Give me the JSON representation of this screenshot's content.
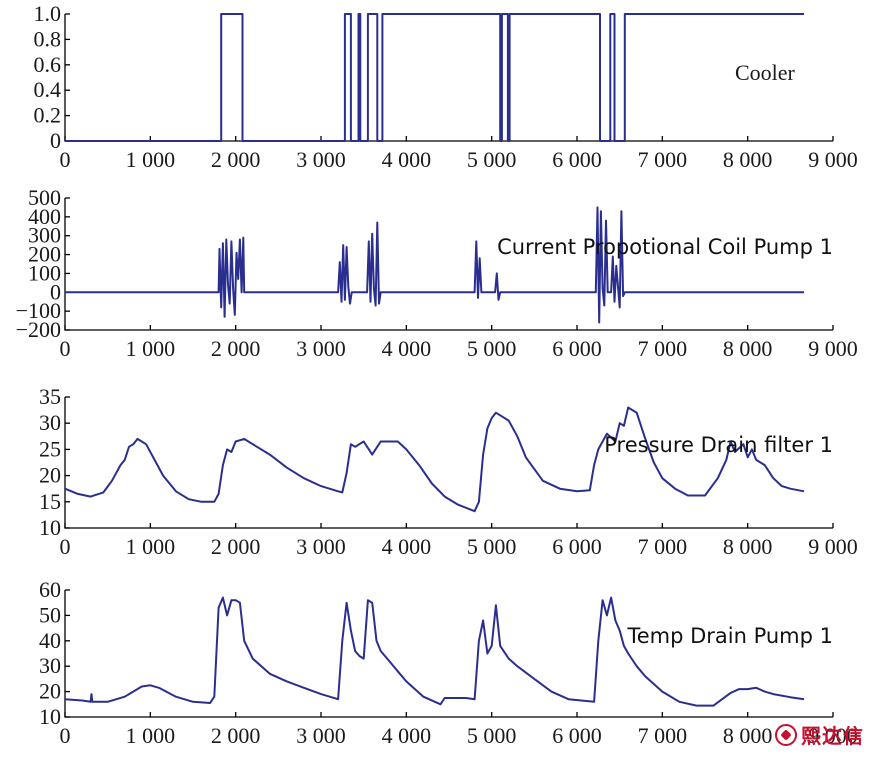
{
  "colors": {
    "line": "#2a2f8f",
    "axis": "#000000",
    "watermark": "#c8102e"
  },
  "watermark": {
    "icon": "seal-logo-icon",
    "text": "熙达信"
  },
  "chart_data": [
    {
      "type": "line",
      "title": "Cooler",
      "xlim": [
        0,
        9000
      ],
      "ylim": [
        0,
        1.0
      ],
      "x_ticks": [
        0,
        1000,
        2000,
        3000,
        4000,
        5000,
        6000,
        7000,
        8000,
        9000
      ],
      "x_tick_labels": [
        "0",
        "1 000",
        "2 000",
        "3 000",
        "4 000",
        "5 000",
        "6 000",
        "7 000",
        "8 000",
        "9 000"
      ],
      "y_ticks": [
        0,
        0.2,
        0.4,
        0.6,
        0.8,
        1.0
      ],
      "y_tick_labels": [
        "0",
        "0.2",
        "0.4",
        "0.6",
        "0.8",
        "1.0"
      ],
      "series": [
        {
          "x": [
            0,
            1830,
            1830,
            2080,
            2080,
            3280,
            3280,
            3350,
            3350,
            3440,
            3440,
            3460,
            3460,
            3550,
            3550,
            3660,
            3660,
            3720,
            3720,
            5100,
            5100,
            5120,
            5120,
            5190,
            5190,
            5210,
            5210,
            6270,
            6270,
            6390,
            6390,
            6440,
            6440,
            6560,
            6560,
            8660
          ],
          "y": [
            0,
            0,
            1,
            1,
            0,
            0,
            1,
            1,
            0,
            0,
            1,
            1,
            0,
            0,
            1,
            1,
            0,
            0,
            1,
            1,
            0,
            0,
            1,
            1,
            0,
            0,
            1,
            1,
            0,
            0,
            1,
            1,
            0,
            0,
            1,
            1
          ]
        }
      ]
    },
    {
      "type": "line",
      "title": "Current Propotional Coil Pump 1",
      "xlim": [
        0,
        9000
      ],
      "ylim": [
        -200,
        500
      ],
      "x_ticks": [
        0,
        1000,
        2000,
        3000,
        4000,
        5000,
        6000,
        7000,
        8000,
        9000
      ],
      "x_tick_labels": [
        "0",
        "1 000",
        "2 000",
        "3 000",
        "4 000",
        "5 000",
        "6 000",
        "7 000",
        "8 000",
        "9 000"
      ],
      "y_ticks": [
        -200,
        -100,
        0,
        100,
        200,
        300,
        400,
        500
      ],
      "y_tick_labels": [
        "−200",
        "−100",
        "0",
        "100",
        "200",
        "300",
        "400",
        "500"
      ],
      "series": [
        {
          "x": [
            0,
            1800,
            1810,
            1830,
            1850,
            1870,
            1890,
            1910,
            1930,
            1950,
            1970,
            1990,
            2010,
            2030,
            2050,
            2070,
            2090,
            2100,
            3200,
            3220,
            3240,
            3260,
            3280,
            3300,
            3320,
            3340,
            3360,
            3540,
            3560,
            3580,
            3600,
            3620,
            3640,
            3660,
            3680,
            3700,
            4800,
            4820,
            4840,
            4860,
            4880,
            5040,
            5060,
            5080,
            5100,
            6220,
            6240,
            6260,
            6280,
            6300,
            6320,
            6340,
            6360,
            6380,
            6400,
            6420,
            6440,
            6460,
            6480,
            6500,
            6520,
            6540,
            6560,
            8660
          ],
          "y": [
            0,
            0,
            230,
            -80,
            260,
            -130,
            280,
            40,
            -60,
            270,
            20,
            -120,
            210,
            70,
            280,
            0,
            290,
            0,
            0,
            160,
            -50,
            250,
            -40,
            240,
            30,
            -60,
            0,
            0,
            270,
            -50,
            310,
            20,
            -70,
            370,
            -60,
            0,
            0,
            270,
            -30,
            180,
            0,
            0,
            100,
            -40,
            0,
            0,
            450,
            -160,
            430,
            20,
            -70,
            380,
            0,
            0,
            0,
            190,
            -50,
            140,
            30,
            -80,
            430,
            -20,
            0,
            0
          ]
        }
      ]
    },
    {
      "type": "line",
      "title": "Pressure Drain filter 1",
      "xlim": [
        0,
        9000
      ],
      "ylim": [
        10,
        35
      ],
      "x_ticks": [
        0,
        1000,
        2000,
        3000,
        4000,
        5000,
        6000,
        7000,
        8000,
        9000
      ],
      "x_tick_labels": [
        "0",
        "1 000",
        "2 000",
        "3 000",
        "4 000",
        "5 000",
        "6 000",
        "7 000",
        "8 000",
        "9 000"
      ],
      "y_ticks": [
        10,
        15,
        20,
        25,
        30,
        35
      ],
      "y_tick_labels": [
        "10",
        "15",
        "20",
        "25",
        "30",
        "35"
      ],
      "series": [
        {
          "x": [
            0,
            150,
            300,
            450,
            550,
            650,
            700,
            750,
            800,
            850,
            950,
            1050,
            1150,
            1300,
            1450,
            1600,
            1750,
            1800,
            1850,
            1900,
            1950,
            2000,
            2100,
            2200,
            2400,
            2600,
            2800,
            3000,
            3200,
            3250,
            3300,
            3350,
            3400,
            3500,
            3600,
            3700,
            3800,
            3900,
            4000,
            4150,
            4300,
            4450,
            4600,
            4800,
            4850,
            4900,
            4950,
            5000,
            5050,
            5100,
            5200,
            5300,
            5400,
            5600,
            5800,
            6000,
            6150,
            6200,
            6250,
            6350,
            6450,
            6500,
            6550,
            6600,
            6700,
            6800,
            6900,
            7000,
            7150,
            7300,
            7500,
            7650,
            7750,
            7800,
            7850,
            7950,
            8000,
            8050,
            8100,
            8200,
            8300,
            8400,
            8500,
            8660
          ],
          "y": [
            17.5,
            16.5,
            16,
            16.8,
            19,
            22,
            23,
            25.5,
            26,
            27,
            26,
            23,
            20,
            17,
            15.5,
            15,
            15,
            16.5,
            22,
            25,
            24.5,
            26.5,
            27,
            26,
            24,
            21.5,
            19.5,
            18,
            17,
            16.8,
            20.5,
            26,
            25.5,
            26.5,
            24,
            26.5,
            26.5,
            26.5,
            25,
            22,
            18.5,
            16,
            14.5,
            13.2,
            15,
            24,
            29,
            31,
            32,
            31.5,
            30.5,
            27.5,
            23.5,
            19,
            17.5,
            17,
            17.2,
            22,
            25,
            28,
            26.5,
            30,
            29.5,
            33,
            32,
            27,
            22.5,
            19.5,
            17.5,
            16.2,
            16.2,
            19.5,
            23,
            26.5,
            24.5,
            26,
            23.5,
            25,
            23,
            22,
            19.5,
            18,
            17.5,
            17
          ]
        }
      ]
    },
    {
      "type": "line",
      "title": "Temp Drain Pump 1",
      "xlim": [
        0,
        9000
      ],
      "ylim": [
        10,
        60
      ],
      "x_ticks": [
        0,
        1000,
        2000,
        3000,
        4000,
        5000,
        6000,
        7000,
        8000,
        9000
      ],
      "x_tick_labels": [
        "0",
        "1 000",
        "2 000",
        "3 000",
        "4 000",
        "5 000",
        "6 000",
        "7 000",
        "8 000",
        "9 000"
      ],
      "y_ticks": [
        10,
        20,
        30,
        40,
        50,
        60
      ],
      "y_tick_labels": [
        "10",
        "20",
        "30",
        "40",
        "50",
        "60"
      ],
      "series": [
        {
          "x": [
            0,
            200,
            300,
            310,
            320,
            500,
            700,
            900,
            1000,
            1100,
            1300,
            1500,
            1700,
            1750,
            1800,
            1850,
            1900,
            1950,
            2000,
            2050,
            2100,
            2200,
            2400,
            2600,
            2800,
            3000,
            3200,
            3250,
            3300,
            3350,
            3400,
            3450,
            3500,
            3550,
            3600,
            3650,
            3700,
            3800,
            3900,
            4000,
            4200,
            4400,
            4450,
            4600,
            4700,
            4800,
            4850,
            4900,
            4950,
            5000,
            5050,
            5100,
            5200,
            5300,
            5500,
            5700,
            5900,
            6200,
            6250,
            6300,
            6350,
            6400,
            6450,
            6500,
            6550,
            6600,
            6700,
            6800,
            7000,
            7200,
            7400,
            7600,
            7700,
            7800,
            7900,
            8000,
            8100,
            8200,
            8300,
            8500,
            8660
          ],
          "y": [
            17,
            16.5,
            16,
            19,
            16,
            16,
            18,
            22,
            22.5,
            21.5,
            18,
            16,
            15.5,
            18,
            53,
            57,
            50,
            56,
            56,
            55,
            40,
            33,
            27,
            24,
            21.5,
            19,
            17,
            40,
            55,
            44,
            36,
            34,
            33,
            56,
            55,
            40,
            36,
            32,
            28,
            24,
            18,
            15,
            17.5,
            17.5,
            17.5,
            17,
            40,
            48,
            35,
            38,
            54,
            38,
            33,
            30,
            25,
            20,
            17,
            16,
            40,
            56,
            50,
            57,
            48,
            44,
            38,
            35,
            30,
            26,
            20,
            16,
            14.5,
            14.5,
            17,
            19.5,
            21,
            21,
            21.5,
            20,
            19,
            17.8,
            17
          ]
        }
      ]
    }
  ]
}
